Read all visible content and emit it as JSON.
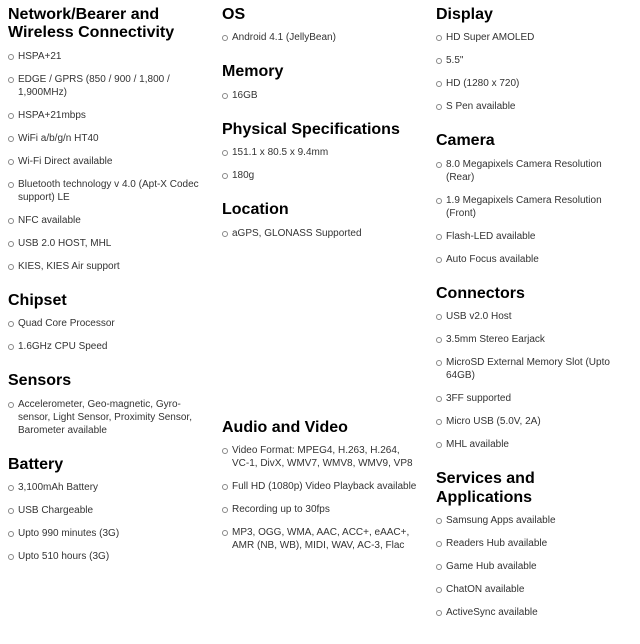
{
  "columns": [
    {
      "sections": [
        {
          "title": "Network/Bearer and Wireless Connectivity",
          "items": [
            "HSPA+21",
            "EDGE / GPRS (850 / 900 / 1,800 / 1,900MHz)",
            "HSPA+21mbps",
            "WiFi a/b/g/n HT40",
            "Wi-Fi Direct available",
            "Bluetooth technology v 4.0 (Apt-X Codec support) LE",
            "NFC available",
            "USB 2.0 HOST, MHL",
            "KIES, KIES Air support"
          ]
        },
        {
          "title": "Chipset",
          "items": [
            "Quad Core Processor",
            "1.6GHz CPU Speed"
          ]
        },
        {
          "title": "Sensors",
          "items": [
            "Accelerometer, Geo-magnetic, Gyro-sensor, Light Sensor, Proximity Sensor, Barometer available"
          ]
        },
        {
          "title": "Battery",
          "items": [
            "3,100mAh Battery",
            "USB Chargeable",
            "Upto 990 minutes (3G)",
            "Upto 510 hours (3G)"
          ]
        }
      ]
    },
    {
      "sections": [
        {
          "title": "OS",
          "items": [
            "Android 4.1 (JellyBean)"
          ]
        },
        {
          "title": "Memory",
          "items": [
            "16GB"
          ]
        },
        {
          "title": "Physical Specifications",
          "items": [
            "151.1 x 80.5 x 9.4mm",
            "180g"
          ]
        },
        {
          "title": "Location",
          "items": [
            "aGPS, GLONASS Supported"
          ]
        },
        {
          "title": "Audio and Video",
          "spacer_before": true,
          "items": [
            "Video Format: MPEG4, H.263, H.264, VC-1, DivX, WMV7, WMV8, WMV9, VP8",
            "Full HD (1080p) Video Playback available",
            "Recording up to 30fps",
            "MP3, OGG, WMA, AAC, ACC+, eAAC+, AMR (NB, WB), MIDI, WAV, AC-3, Flac"
          ]
        }
      ]
    },
    {
      "sections": [
        {
          "title": "Display",
          "items": [
            "HD Super AMOLED",
            "5.5\"",
            "HD (1280 x 720)",
            "S Pen available"
          ]
        },
        {
          "title": "Camera",
          "items": [
            "8.0 Megapixels Camera Resolution (Rear)",
            "1.9 Megapixels Camera Resolution (Front)",
            "Flash-LED available",
            "Auto Focus available"
          ]
        },
        {
          "title": "Connectors",
          "items": [
            "USB v2.0 Host",
            "3.5mm Stereo Earjack",
            "MicroSD External Memory Slot (Upto 64GB)",
            "3FF supported",
            "Micro USB (5.0V, 2A)",
            "MHL available"
          ]
        },
        {
          "title": "Services and Applications",
          "items": [
            "Samsung Apps available",
            "Readers Hub available",
            "Game Hub available",
            "ChatON available",
            "ActiveSync available"
          ]
        }
      ]
    }
  ],
  "style": {
    "background_color": "#ffffff",
    "title_color": "#000000",
    "text_color": "#333333",
    "bullet_border_color": "#888888",
    "title_fontsize_pt": 12,
    "item_fontsize_pt": 7.5,
    "font_family": "Arial, Helvetica, sans-serif"
  }
}
